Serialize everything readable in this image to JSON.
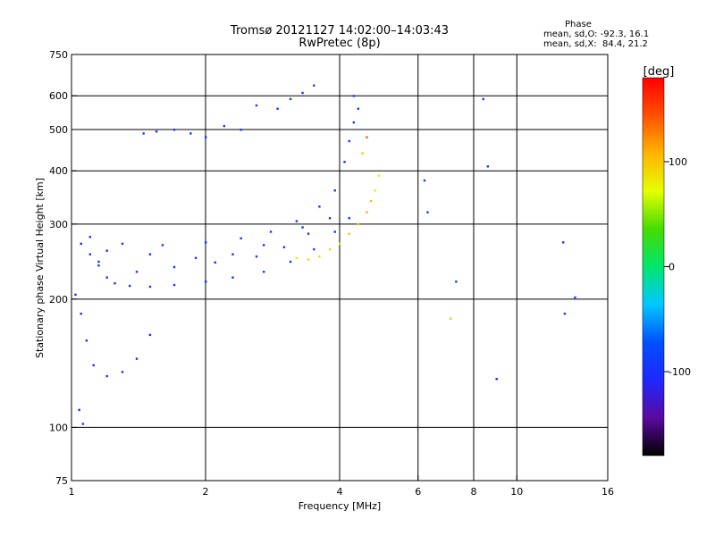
{
  "header": {
    "title": "Tromsø 20121127 14:02:00–14:03:43",
    "subtitle": "RwPretec (8p)",
    "phase_heading": "Phase",
    "stat_o": "mean, sd,O: -92.3, 16.1",
    "stat_x": "mean, sd,X:  84.4, 21.2"
  },
  "chart_data": {
    "type": "scatter",
    "xlabel": "Frequency [MHz]",
    "ylabel": "Stationary phase Virtual Height [km]",
    "xscale": "log",
    "yscale": "log",
    "xlim": [
      1,
      16
    ],
    "ylim": [
      75,
      750
    ],
    "x_ticks": [
      1,
      2,
      4,
      6,
      8,
      10,
      16
    ],
    "y_ticks": [
      75,
      100,
      200,
      300,
      400,
      500,
      600,
      750
    ],
    "x_grid": [
      2,
      4,
      6,
      8,
      10
    ],
    "y_grid": [
      100,
      200,
      300,
      400,
      500,
      600
    ],
    "colorbar": {
      "label": "[deg]",
      "range": [
        -180,
        180
      ],
      "ticks": [
        100,
        0,
        -100
      ],
      "stops": [
        "#000000",
        "#5a0aa0",
        "#1e28ff",
        "#0050ff",
        "#00c8ff",
        "#00e66e",
        "#46dc00",
        "#e6ff00",
        "#ffb400",
        "#ff5000",
        "#ff0000"
      ]
    },
    "series": [
      {
        "points": [
          [
            1.05,
            270,
            -100
          ],
          [
            1.1,
            255,
            -95
          ],
          [
            1.15,
            245,
            -100
          ],
          [
            1.2,
            225,
            -102
          ],
          [
            1.25,
            218,
            -100
          ],
          [
            1.35,
            215,
            -98
          ],
          [
            1.5,
            214,
            -99
          ],
          [
            1.7,
            216,
            -97
          ],
          [
            2.0,
            220,
            -98
          ],
          [
            2.3,
            225,
            -96
          ],
          [
            2.7,
            232,
            -95
          ],
          [
            3.1,
            245,
            -93
          ],
          [
            3.5,
            262,
            -95
          ],
          [
            3.9,
            288,
            -96
          ],
          [
            4.2,
            310,
            -95
          ],
          [
            1.1,
            280,
            -100
          ],
          [
            1.3,
            270,
            -101
          ],
          [
            1.6,
            268,
            -98
          ],
          [
            2.0,
            272,
            -97
          ],
          [
            2.4,
            278,
            -96
          ],
          [
            2.8,
            288,
            -98
          ],
          [
            3.2,
            305,
            -99
          ],
          [
            3.6,
            330,
            -97
          ],
          [
            3.9,
            360,
            -95
          ],
          [
            1.15,
            240,
            -95
          ],
          [
            1.4,
            232,
            -100
          ],
          [
            1.7,
            238,
            -98
          ],
          [
            2.1,
            244,
            -97
          ],
          [
            2.6,
            252,
            -95
          ],
          [
            3.0,
            265,
            -96
          ],
          [
            3.4,
            285,
            -98
          ],
          [
            3.8,
            310,
            -99
          ],
          [
            1.2,
            260,
            -99
          ],
          [
            1.5,
            255,
            -97
          ],
          [
            1.9,
            250,
            -96
          ],
          [
            2.3,
            255,
            -98
          ],
          [
            2.7,
            268,
            -97
          ],
          [
            3.3,
            295,
            -95
          ],
          [
            1.45,
            490,
            -92
          ],
          [
            1.55,
            495,
            -90
          ],
          [
            1.7,
            500,
            -91
          ],
          [
            1.85,
            490,
            -89
          ],
          [
            2.0,
            480,
            -93
          ],
          [
            2.2,
            510,
            -94
          ],
          [
            2.4,
            500,
            -95
          ],
          [
            2.6,
            570,
            -88
          ],
          [
            2.9,
            560,
            -92
          ],
          [
            3.1,
            590,
            -93
          ],
          [
            3.3,
            610,
            -91
          ],
          [
            3.5,
            635,
            -90
          ],
          [
            1.02,
            205,
            -100
          ],
          [
            1.05,
            185,
            -102
          ],
          [
            1.08,
            160,
            -103
          ],
          [
            1.12,
            140,
            -104
          ],
          [
            1.2,
            132,
            -106
          ],
          [
            1.3,
            135,
            -104
          ],
          [
            1.4,
            145,
            -105
          ],
          [
            1.5,
            165,
            -110
          ],
          [
            1.04,
            110,
            -100
          ],
          [
            1.06,
            102,
            -95
          ],
          [
            3.2,
            250,
            85
          ],
          [
            3.4,
            248,
            90
          ],
          [
            3.6,
            252,
            88
          ],
          [
            3.8,
            262,
            92
          ],
          [
            4.0,
            270,
            86
          ],
          [
            4.2,
            285,
            95
          ],
          [
            4.4,
            300,
            100
          ],
          [
            4.6,
            320,
            110
          ],
          [
            4.7,
            340,
            105
          ],
          [
            4.8,
            360,
            80
          ],
          [
            4.9,
            390,
            75
          ],
          [
            4.5,
            440,
            95
          ],
          [
            4.6,
            480,
            140
          ],
          [
            4.1,
            420,
            -95
          ],
          [
            4.2,
            470,
            -94
          ],
          [
            4.3,
            520,
            -96
          ],
          [
            4.4,
            560,
            -93
          ],
          [
            4.3,
            600,
            -92
          ],
          [
            6.2,
            380,
            -90
          ],
          [
            6.3,
            320,
            -92
          ],
          [
            7.3,
            220,
            -95
          ],
          [
            7.1,
            180,
            60
          ],
          [
            8.4,
            590,
            -100
          ],
          [
            8.6,
            410,
            -95
          ],
          [
            9.0,
            130,
            -110
          ],
          [
            12.7,
            272,
            -95
          ],
          [
            12.8,
            185,
            -95
          ],
          [
            13.5,
            202,
            -90
          ]
        ]
      }
    ]
  }
}
